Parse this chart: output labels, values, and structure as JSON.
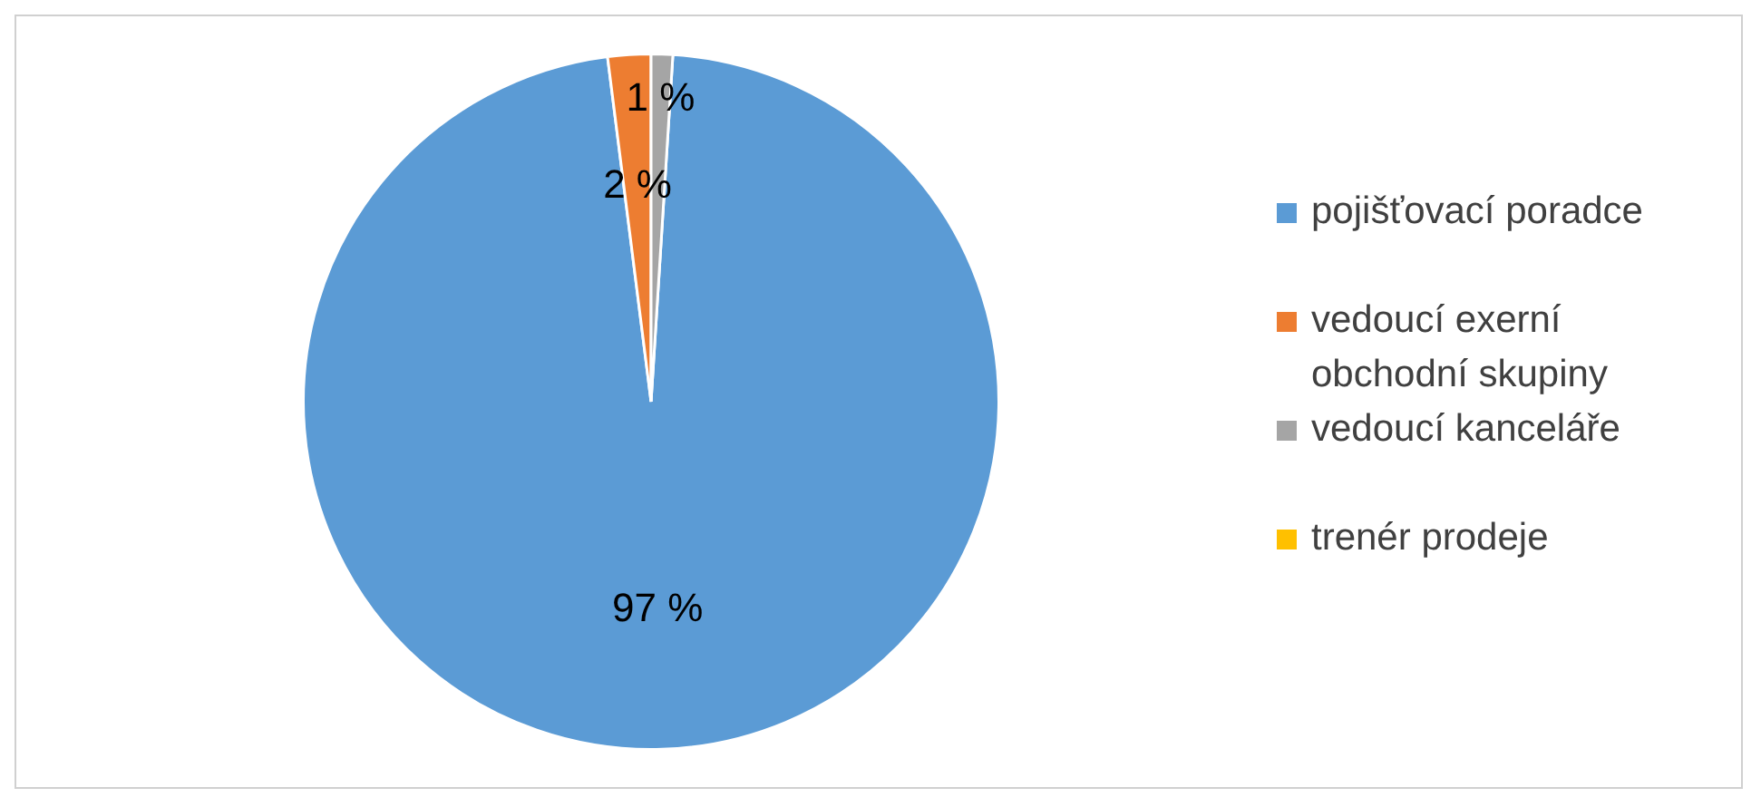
{
  "chart_data": {
    "type": "pie",
    "categories": [
      "pojišťovací poradce",
      "vedoucí exerní obchodní skupiny",
      "vedoucí kanceláře",
      "trenér prodeje"
    ],
    "values": [
      97,
      2,
      1,
      0
    ],
    "colors": [
      "#5b9bd5",
      "#ed7d31",
      "#a5a5a5",
      "#ffc000"
    ],
    "value_labels": [
      "97 %",
      "2 %",
      "1 %",
      null
    ],
    "legend": "right"
  }
}
